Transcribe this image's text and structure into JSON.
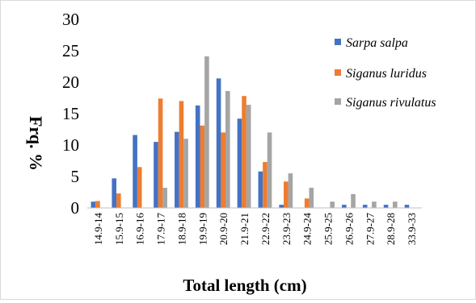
{
  "chart_data": {
    "type": "bar",
    "title": "",
    "xlabel": "Total length (cm)",
    "ylabel": "Frq. %",
    "ylim": [
      0,
      30
    ],
    "yticks": [
      0,
      5,
      10,
      15,
      20,
      25,
      30
    ],
    "grid": false,
    "legend_position": "right",
    "categories": [
      "14.9-14",
      "15.9-15",
      "16.9-16",
      "17.9-17",
      "18.9-18",
      "19.9-19",
      "20.9-20",
      "21.9-21",
      "22.9-22",
      "23.9-23",
      "24.9-24",
      "25.9-25",
      "26.9-26",
      "27.9-27",
      "28.9-28",
      "33.9-33"
    ],
    "series": [
      {
        "name": "Sarpa salpa",
        "color": "#4472c4",
        "values": [
          1.0,
          4.7,
          11.6,
          10.5,
          12.1,
          16.3,
          20.6,
          14.2,
          5.8,
          0.5,
          0,
          0,
          0.5,
          0.5,
          0.5,
          0.5
        ]
      },
      {
        "name": "Siganus luridus",
        "color": "#ed7d31",
        "values": [
          1.1,
          2.3,
          6.5,
          17.4,
          17.0,
          13.1,
          12.0,
          17.8,
          7.3,
          4.2,
          1.5,
          0,
          0,
          0,
          0,
          0
        ]
      },
      {
        "name": "Siganus rivulatus",
        "color": "#a5a5a5",
        "values": [
          0,
          0,
          0,
          3.2,
          11.0,
          24.1,
          18.6,
          16.4,
          12.0,
          5.5,
          3.2,
          1.0,
          2.2,
          1.0,
          1.0,
          0
        ]
      }
    ]
  }
}
